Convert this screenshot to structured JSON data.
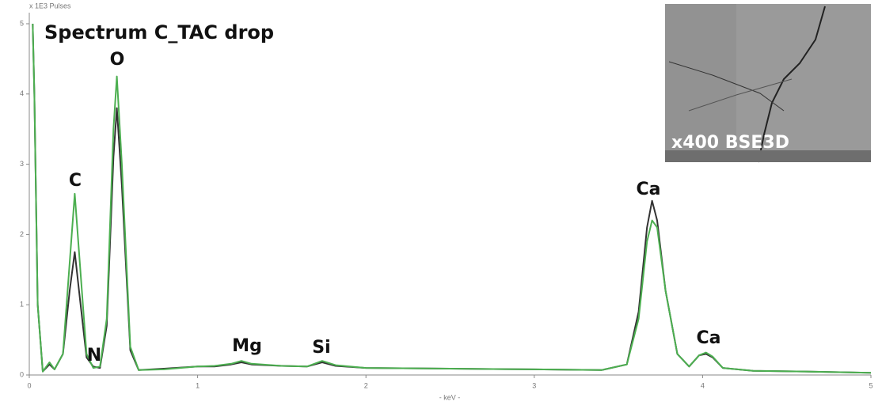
{
  "chart_data": {
    "type": "line",
    "title": "Spectrum C_TAC drop",
    "y_label": "x 1E3 Pulses",
    "x_label": "- keV -",
    "xlim": [
      0,
      5
    ],
    "xticks": [
      0,
      1,
      2,
      3,
      4,
      5
    ],
    "ylim": [
      0,
      5
    ],
    "yticks": [
      0,
      1,
      2,
      3,
      4,
      5
    ],
    "grid": false,
    "x": [
      0.02,
      0.03,
      0.05,
      0.08,
      0.12,
      0.15,
      0.2,
      0.24,
      0.27,
      0.3,
      0.34,
      0.38,
      0.42,
      0.46,
      0.5,
      0.52,
      0.55,
      0.6,
      0.65,
      0.8,
      1.0,
      1.1,
      1.2,
      1.26,
      1.32,
      1.5,
      1.65,
      1.74,
      1.82,
      2.0,
      2.5,
      3.0,
      3.4,
      3.55,
      3.62,
      3.67,
      3.7,
      3.73,
      3.78,
      3.85,
      3.92,
      3.98,
      4.02,
      4.06,
      4.12,
      4.3,
      4.6,
      5.0
    ],
    "series": [
      {
        "color": "#333333",
        "values": [
          5.0,
          4.0,
          1.0,
          0.05,
          0.15,
          0.08,
          0.3,
          1.2,
          1.75,
          1.1,
          0.25,
          0.12,
          0.1,
          0.7,
          3.1,
          3.8,
          2.7,
          0.35,
          0.07,
          0.09,
          0.12,
          0.12,
          0.15,
          0.18,
          0.15,
          0.13,
          0.12,
          0.18,
          0.13,
          0.1,
          0.09,
          0.08,
          0.07,
          0.15,
          0.9,
          2.1,
          2.48,
          2.2,
          1.2,
          0.3,
          0.12,
          0.28,
          0.3,
          0.25,
          0.1,
          0.06,
          0.05,
          0.03
        ]
      },
      {
        "color": "#4caf50",
        "values": [
          5.0,
          4.0,
          1.0,
          0.05,
          0.18,
          0.08,
          0.3,
          1.6,
          2.58,
          1.6,
          0.3,
          0.1,
          0.12,
          0.8,
          3.5,
          4.25,
          3.0,
          0.4,
          0.07,
          0.08,
          0.12,
          0.13,
          0.16,
          0.2,
          0.16,
          0.13,
          0.12,
          0.2,
          0.14,
          0.1,
          0.09,
          0.08,
          0.07,
          0.15,
          0.8,
          1.9,
          2.2,
          2.1,
          1.2,
          0.3,
          0.12,
          0.28,
          0.32,
          0.26,
          0.1,
          0.06,
          0.05,
          0.03
        ]
      }
    ],
    "annotations": [
      "C",
      "N",
      "O",
      "Mg",
      "Si",
      "Ca",
      "Ca"
    ],
    "inset_label": "x400 BSE3D"
  }
}
